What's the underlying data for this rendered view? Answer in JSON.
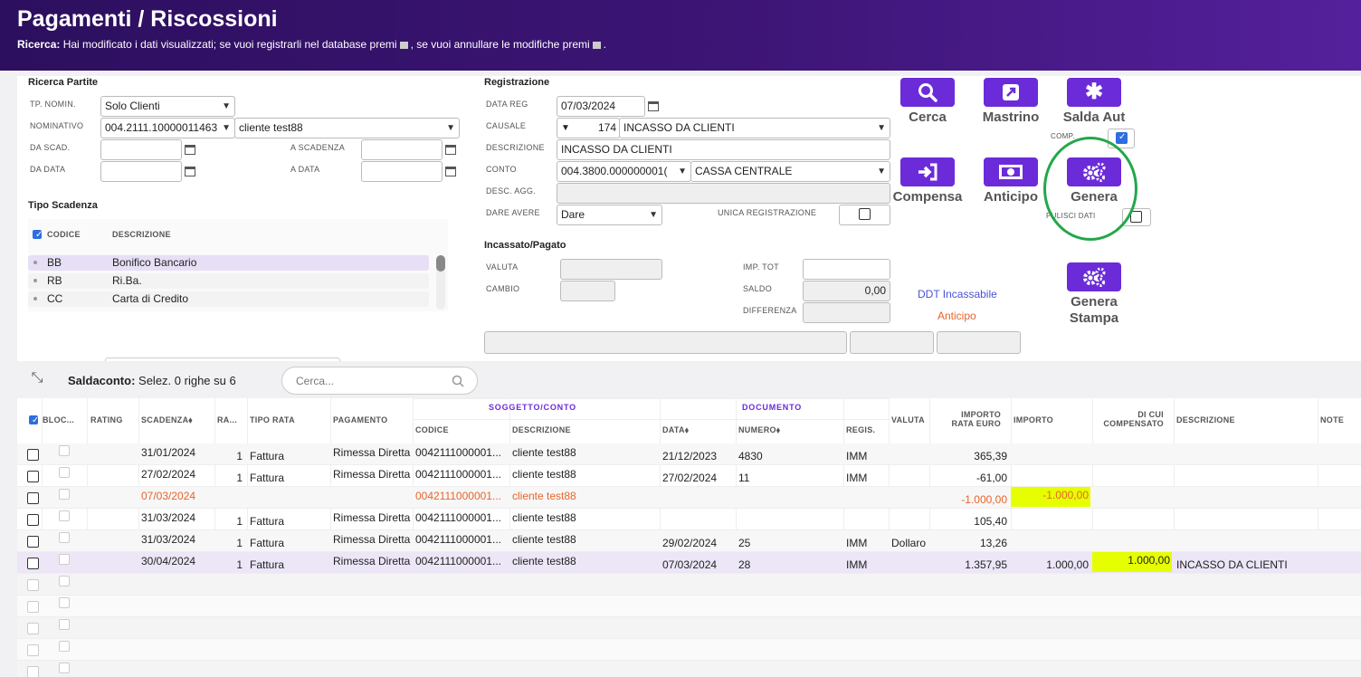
{
  "header": {
    "title": "Pagamenti / Riscossioni",
    "sub_label": "Ricerca:",
    "sub_text1": "Hai modificato i dati visualizzati; se vuoi registrarli nel database premi",
    "sub_text2": ", se vuoi annullare le modifiche premi",
    "sub_text3": "."
  },
  "ricerca": {
    "title": "Ricerca Partite",
    "tp_nomin_label": "TP. NOMIN.",
    "tp_nomin_value": "Solo Clienti",
    "nominativo_label": "NOMINATIVO",
    "nominativo_code": "004.2111.10000011463",
    "nominativo_name": "cliente test88",
    "da_scad_label": "DA SCAD.",
    "a_scad_label": "A SCADENZA",
    "da_data_label": "DA DATA",
    "a_data_label": "A DATA"
  },
  "tipo_scadenza": {
    "title": "Tipo Scadenza",
    "col_code": "CODICE",
    "col_desc": "DESCRIZIONE",
    "items": [
      {
        "code": "BB",
        "desc": "Bonifico Bancario"
      },
      {
        "code": "RB",
        "desc": "Ri.Ba."
      },
      {
        "code": "CC",
        "desc": "Carta di Credito"
      }
    ]
  },
  "registrazione": {
    "title": "Registrazione",
    "data_reg_label": "DATA REG",
    "data_reg": "07/03/2024",
    "causale_label": "CAUSALE",
    "causale_code": "174",
    "causale_desc": "INCASSO DA CLIENTI",
    "descrizione_label": "DESCRIZIONE",
    "descrizione": "INCASSO DA CLIENTI",
    "conto_label": "CONTO",
    "conto_code": "004.3800.000000001(",
    "conto_desc": "CASSA CENTRALE",
    "desc_agg_label": "DESC. AGG.",
    "dare_avere_label": "DARE AVERE",
    "dare_avere": "Dare",
    "unica_label": "UNICA REGISTRAZIONE"
  },
  "incassato": {
    "title": "Incassato/Pagato",
    "valuta_label": "VALUTA",
    "cambio_label": "CAMBIO",
    "imp_tot_label": "IMP. TOT",
    "saldo_label": "SALDO",
    "saldo": "0,00",
    "differenza_label": "DIFFERENZA",
    "ddt_link": "DDT Incassabile",
    "anticipo_link": "Anticipo"
  },
  "buttons": {
    "cerca": "Cerca",
    "mastrino": "Mastrino",
    "saldaaut": "Salda Aut",
    "comp": "COMP.",
    "compensa": "Compensa",
    "anticipo": "Anticipo",
    "genera": "Genera",
    "pulisci": "PULISCI DATI",
    "generastampa1": "Genera",
    "generastampa2": "Stampa"
  },
  "saldaconto": {
    "label": "Saldaconto:",
    "info": "Selez. 0 righe su 6",
    "search_placeholder": "Cerca..."
  },
  "table": {
    "group_soggetto": "SOGGETTO/CONTO",
    "group_documento": "DOCUMENTO",
    "headers": {
      "blocco": "BLOC...",
      "rating": "RATING",
      "scadenza": "SCADENZA",
      "ra": "RA...",
      "tipo_rata": "TIPO RATA",
      "pagamento": "PAGAMENTO",
      "codice": "CODICE",
      "descrizione": "DESCRIZIONE",
      "data": "DATA",
      "numero": "NUMERO",
      "regis": "REGIS.",
      "valuta": "VALUTA",
      "importo_rata1": "IMPORTO",
      "importo_rata2": "RATA EURO",
      "importo": "IMPORTO",
      "comp1": "DI CUI",
      "comp2": "COMPENSATO",
      "desc2": "DESCRIZIONE",
      "note": "NOTE"
    },
    "rows": [
      {
        "scad": "31/01/2024",
        "ra": "1",
        "tipo": "Fattura",
        "pag": "Rimessa Diretta",
        "cod": "0042111000001...",
        "desc": "cliente test88",
        "data": "21/12/2023",
        "num": "4830",
        "regis": "IMM",
        "valuta": "",
        "imp_rata": "365,39",
        "imp": "",
        "comp": "",
        "desc2": ""
      },
      {
        "scad": "27/02/2024",
        "ra": "1",
        "tipo": "Fattura",
        "pag": "Rimessa Diretta",
        "cod": "0042111000001...",
        "desc": "cliente test88",
        "data": "27/02/2024",
        "num": "11",
        "regis": "IMM",
        "valuta": "",
        "imp_rata": "-61,00",
        "imp": "",
        "comp": "",
        "desc2": ""
      },
      {
        "scad": "07/03/2024",
        "ra": "",
        "tipo": "",
        "pag": "",
        "cod": "0042111000001...",
        "desc": "cliente test88",
        "data": "",
        "num": "",
        "regis": "",
        "valuta": "",
        "imp_rata": "-1.000,00",
        "imp": "-1.000,00",
        "comp": "",
        "desc2": ""
      },
      {
        "scad": "31/03/2024",
        "ra": "1",
        "tipo": "Fattura",
        "pag": "Rimessa Diretta",
        "cod": "0042111000001...",
        "desc": "cliente test88",
        "data": "",
        "num": "",
        "regis": "",
        "valuta": "",
        "imp_rata": "105,40",
        "imp": "",
        "comp": "",
        "desc2": ""
      },
      {
        "scad": "31/03/2024",
        "ra": "1",
        "tipo": "Fattura",
        "pag": "Rimessa Diretta",
        "cod": "0042111000001...",
        "desc": "cliente test88",
        "data": "29/02/2024",
        "num": "25",
        "regis": "IMM",
        "valuta": "Dollaro",
        "imp_rata": "13,26",
        "imp": "",
        "comp": "",
        "desc2": ""
      },
      {
        "scad": "30/04/2024",
        "ra": "1",
        "tipo": "Fattura",
        "pag": "Rimessa Diretta",
        "cod": "0042111000001...",
        "desc": "cliente test88",
        "data": "07/03/2024",
        "num": "28",
        "regis": "IMM",
        "valuta": "",
        "imp_rata": "1.357,95",
        "imp": "1.000,00",
        "comp": "1.000,00",
        "desc2": "INCASSO DA CLIENTI"
      }
    ]
  },
  "colors": {
    "accent": "#6c2bd9",
    "orange": "#e8642a",
    "highlight": "#e6ff00",
    "annotation": "#22a84a"
  }
}
